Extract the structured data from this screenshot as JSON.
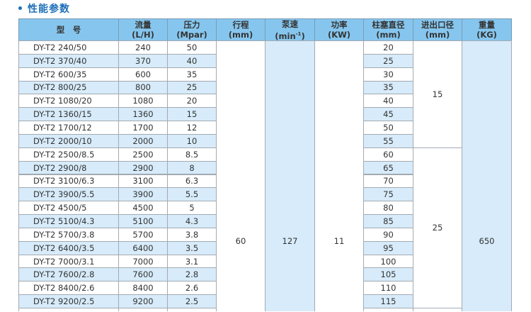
{
  "title": "性能参数",
  "colors": {
    "header_bg": "#86c6ee",
    "alt_row_bg": "#d7ebfa",
    "title": "#1d6fb8"
  },
  "headers": [
    {
      "line1": "型　号",
      "line2": ""
    },
    {
      "line1": "流量",
      "line2": "(L/H)"
    },
    {
      "line1": "压力",
      "line2": "(Mpar)"
    },
    {
      "line1": "行程",
      "line2": "(mm)"
    },
    {
      "line1": "泵速",
      "line2": "(min",
      "sup": "-1",
      "tail": ")"
    },
    {
      "line1": "功率",
      "line2": "(KW)"
    },
    {
      "line1": "柱塞直径",
      "line2": "(mm)"
    },
    {
      "line1": "进出口径",
      "line2": "(mm)"
    },
    {
      "line1": "重量",
      "line2": "(KG)"
    }
  ],
  "rows": [
    {
      "model": "DY-T2 240/50",
      "flow": "240",
      "pressure": "50",
      "plunger": "20"
    },
    {
      "model": "DY-T2 370/40",
      "flow": "370",
      "pressure": "40",
      "plunger": "25"
    },
    {
      "model": "DY-T2 600/35",
      "flow": "600",
      "pressure": "35",
      "plunger": "30"
    },
    {
      "model": "DY-T2 800/25",
      "flow": "800",
      "pressure": "25",
      "plunger": "35"
    },
    {
      "model": "DY-T2 1080/20",
      "flow": "1080",
      "pressure": "20",
      "plunger": "40"
    },
    {
      "model": "DY-T2 1360/15",
      "flow": "1360",
      "pressure": "15",
      "plunger": "45"
    },
    {
      "model": "DY-T2 1700/12",
      "flow": "1700",
      "pressure": "12",
      "plunger": "50"
    },
    {
      "model": "DY-T2 2000/10",
      "flow": "2000",
      "pressure": "10",
      "plunger": "55"
    },
    {
      "model": "DY-T2 2500/8.5",
      "flow": "2500",
      "pressure": "8.5",
      "plunger": "60"
    },
    {
      "model": "DY-T2 2900/8",
      "flow": "2900",
      "pressure": "8",
      "plunger": "65"
    },
    {
      "model": "DY-T2 3100/6.3",
      "flow": "3100",
      "pressure": "6.3",
      "plunger": "70"
    },
    {
      "model": "DY-T2 3900/5.5",
      "flow": "3900",
      "pressure": "5.5",
      "plunger": "75"
    },
    {
      "model": "DY-T2 4500/5",
      "flow": "4500",
      "pressure": "5",
      "plunger": "80"
    },
    {
      "model": "DY-T2 5100/4.3",
      "flow": "5100",
      "pressure": "4.3",
      "plunger": "85"
    },
    {
      "model": "DY-T2 5700/3.8",
      "flow": "5700",
      "pressure": "3.8",
      "plunger": "90"
    },
    {
      "model": "DY-T2 6400/3.5",
      "flow": "6400",
      "pressure": "3.5",
      "plunger": "95"
    },
    {
      "model": "DY-T2 7000/3.1",
      "flow": "7000",
      "pressure": "3.1",
      "plunger": "100"
    },
    {
      "model": "DY-T2 7600/2.8",
      "flow": "7600",
      "pressure": "2.8",
      "plunger": "105"
    },
    {
      "model": "DY-T2 8400/2.6",
      "flow": "8400",
      "pressure": "2.6",
      "plunger": "110"
    },
    {
      "model": "DY-T2 9200/2.5",
      "flow": "9200",
      "pressure": "2.5",
      "plunger": "115"
    }
  ],
  "shared": {
    "stroke": "60",
    "speed": "127",
    "power": "11",
    "weight": "650"
  },
  "port_groups": [
    {
      "value": "15",
      "rows": 8
    },
    {
      "value": "25",
      "rows": 12
    }
  ]
}
